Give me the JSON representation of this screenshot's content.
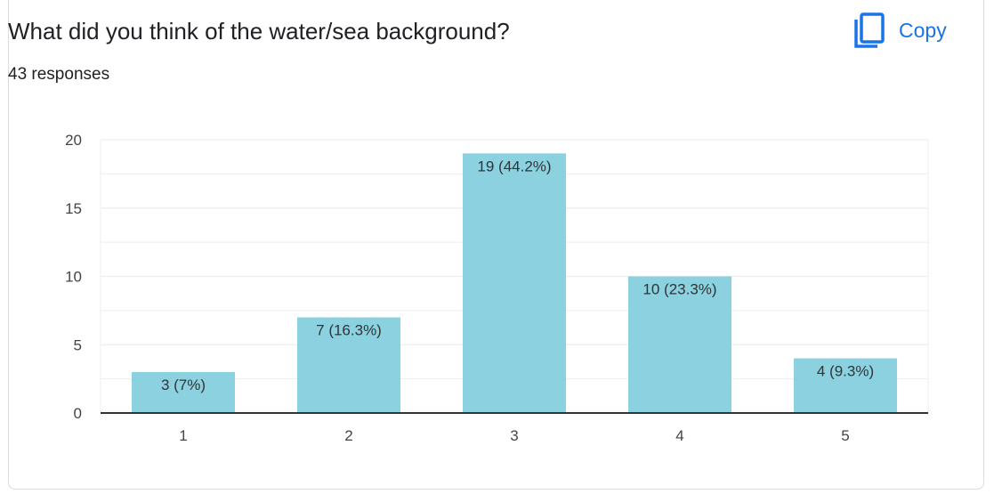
{
  "header": {
    "title": "What did you think of the water/sea background?",
    "responses": "43 responses",
    "copy_label": "Copy",
    "copy_icon": "copy-icon"
  },
  "colors": {
    "bar": "#8bd1e0",
    "accent": "#1a73e8",
    "grid": "#eeeeee",
    "axis": "#333333"
  },
  "chart_data": {
    "type": "bar",
    "title": "What did you think of the water/sea background?",
    "xlabel": "",
    "ylabel": "",
    "categories": [
      "1",
      "2",
      "3",
      "4",
      "5"
    ],
    "values": [
      3,
      7,
      19,
      10,
      4
    ],
    "data_labels": [
      "3 (7%)",
      "7 (16.3%)",
      "19 (44.2%)",
      "10 (23.3%)",
      "4 (9.3%)"
    ],
    "ylim": [
      0,
      20
    ],
    "yticks": [
      "0",
      "5",
      "10",
      "15",
      "20"
    ],
    "grid": true,
    "legend": "none"
  }
}
